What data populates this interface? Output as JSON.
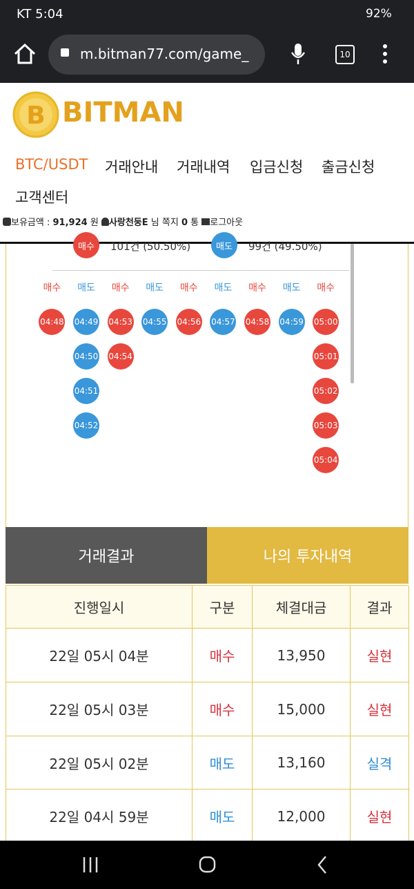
{
  "status": {
    "carrier_time": "KT 5:04",
    "battery": "92%"
  },
  "browser": {
    "url": "m.bitman77.com/game_",
    "tabs": "10"
  },
  "header": {
    "logo": "BITMAN",
    "nav": [
      "BTC/USDT",
      "거래안내",
      "거래내역",
      "입금신청",
      "출금신청",
      "고객센터"
    ],
    "info": {
      "balance_label": "보유금액 :",
      "balance": "91,924",
      "balance_unit": "원",
      "user": "사랑천둥E",
      "user_suffix": "님 쪽지",
      "messages": "0",
      "messages_unit": "통",
      "logout": "로그아웃"
    }
  },
  "stats": [
    {
      "label": "매수",
      "text": "101건 (50.50%)",
      "color": "#e8473d"
    },
    {
      "label": "매도",
      "text": "99건 (49.50%)",
      "color": "#3a97da"
    }
  ],
  "board": [
    {
      "header": "매수",
      "color": "#e8473d",
      "cells": [
        "04:48"
      ]
    },
    {
      "header": "매도",
      "color": "#3a97da",
      "cells": [
        "04:49",
        "04:50",
        "04:51",
        "04:52"
      ]
    },
    {
      "header": "매수",
      "color": "#e8473d",
      "cells": [
        "04:53",
        "04:54"
      ]
    },
    {
      "header": "매도",
      "color": "#3a97da",
      "cells": [
        "04:55"
      ]
    },
    {
      "header": "매수",
      "color": "#e8473d",
      "cells": [
        "04:56"
      ]
    },
    {
      "header": "매도",
      "color": "#3a97da",
      "cells": [
        "04:57"
      ]
    },
    {
      "header": "매수",
      "color": "#e8473d",
      "cells": [
        "04:58"
      ]
    },
    {
      "header": "매도",
      "color": "#3a97da",
      "cells": [
        "04:59"
      ]
    },
    {
      "header": "매수",
      "color": "#e8473d",
      "cells": [
        "05:00",
        "05:01",
        "05:02",
        "05:03",
        "05:04"
      ]
    }
  ],
  "tabs": [
    "거래결과",
    "나의 투자내역"
  ],
  "table": {
    "headers": [
      "진행일시",
      "구분",
      "체결대금",
      "결과"
    ],
    "rows": [
      {
        "date": "22일 05시 04분",
        "side": "매수",
        "amount": "13,950",
        "result": "실현",
        "side_color": "#d8323c",
        "result_color": "#d8323c"
      },
      {
        "date": "22일 05시 03분",
        "side": "매수",
        "amount": "15,000",
        "result": "실현",
        "side_color": "#d8323c",
        "result_color": "#d8323c"
      },
      {
        "date": "22일 05시 02분",
        "side": "매도",
        "amount": "13,160",
        "result": "실격",
        "side_color": "#2f8fd0",
        "result_color": "#2f8fd0"
      },
      {
        "date": "22일 04시 59분",
        "side": "매도",
        "amount": "12,000",
        "result": "실현",
        "side_color": "#2f8fd0",
        "result_color": "#d8323c"
      }
    ]
  }
}
